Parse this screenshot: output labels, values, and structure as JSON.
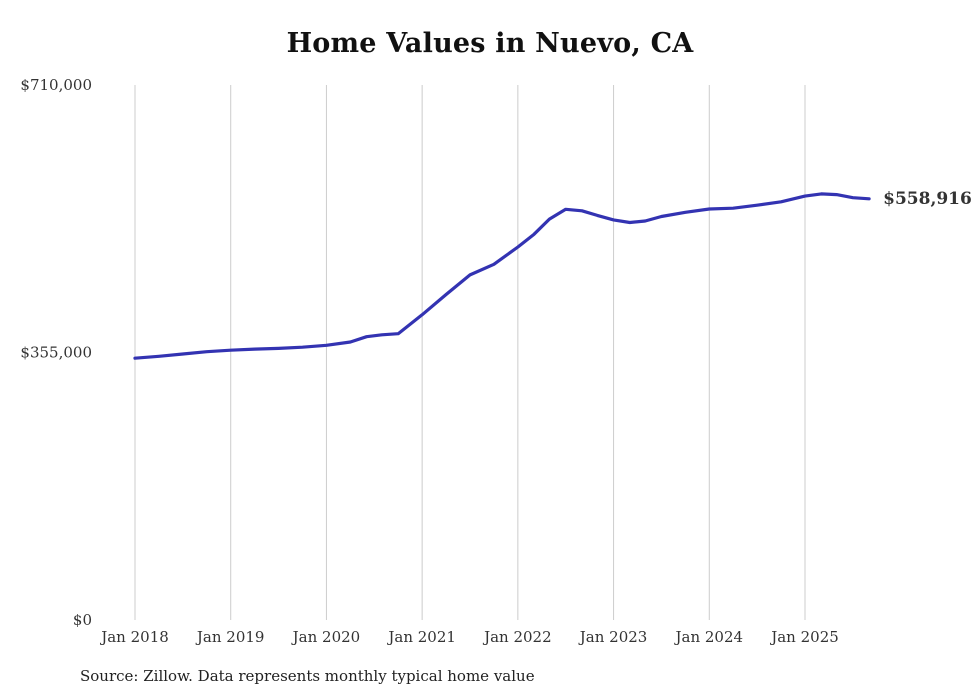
{
  "title": "Home Values in Nuevo, CA",
  "source_note": "Source: Zillow. Data represents monthly typical home value",
  "colors": {
    "line": "#3333b2",
    "end_label": "#3333b2",
    "gridline": "#cccccc",
    "axis_text": "#333333",
    "title_text": "#111111"
  },
  "chart_data": {
    "type": "line",
    "title": "Home Values in Nuevo, CA",
    "xlabel": "",
    "ylabel": "",
    "ylim": [
      0,
      710000
    ],
    "xlim": [
      2017.85,
      2025.95
    ],
    "grid": "vertical-gridlines-at-each-january",
    "legend": "none",
    "end_label": "$558,916",
    "end_value": 558916,
    "y_ticks": [
      {
        "value": 0,
        "label": "$0"
      },
      {
        "value": 355000,
        "label": "$355,000"
      },
      {
        "value": 710000,
        "label": "$710,000"
      }
    ],
    "x_ticks": [
      {
        "value": 2018,
        "label": "Jan 2018"
      },
      {
        "value": 2019,
        "label": "Jan 2019"
      },
      {
        "value": 2020,
        "label": "Jan 2020"
      },
      {
        "value": 2021,
        "label": "Jan 2021"
      },
      {
        "value": 2022,
        "label": "Jan 2022"
      },
      {
        "value": 2023,
        "label": "Jan 2023"
      },
      {
        "value": 2024,
        "label": "Jan 2024"
      },
      {
        "value": 2025,
        "label": "Jan 2025"
      }
    ],
    "series": [
      {
        "name": "Typical home value",
        "x": [
          2018.0,
          2018.25,
          2018.5,
          2018.75,
          2019.0,
          2019.25,
          2019.5,
          2019.75,
          2020.0,
          2020.25,
          2020.42,
          2020.58,
          2020.75,
          2021.0,
          2021.25,
          2021.5,
          2021.75,
          2022.0,
          2022.17,
          2022.33,
          2022.5,
          2022.67,
          2022.83,
          2023.0,
          2023.17,
          2023.33,
          2023.5,
          2023.75,
          2024.0,
          2024.25,
          2024.5,
          2024.75,
          2025.0,
          2025.17,
          2025.33,
          2025.5,
          2025.67
        ],
        "values": [
          347500,
          350000,
          353000,
          356000,
          358000,
          359500,
          360500,
          362000,
          364500,
          369000,
          376000,
          378500,
          380000,
          405000,
          432000,
          458000,
          472000,
          495000,
          512000,
          532000,
          545000,
          543000,
          537000,
          531000,
          527500,
          529500,
          535500,
          541000,
          545500,
          546500,
          550500,
          555000,
          562500,
          565500,
          564500,
          560500,
          558916
        ]
      }
    ]
  }
}
